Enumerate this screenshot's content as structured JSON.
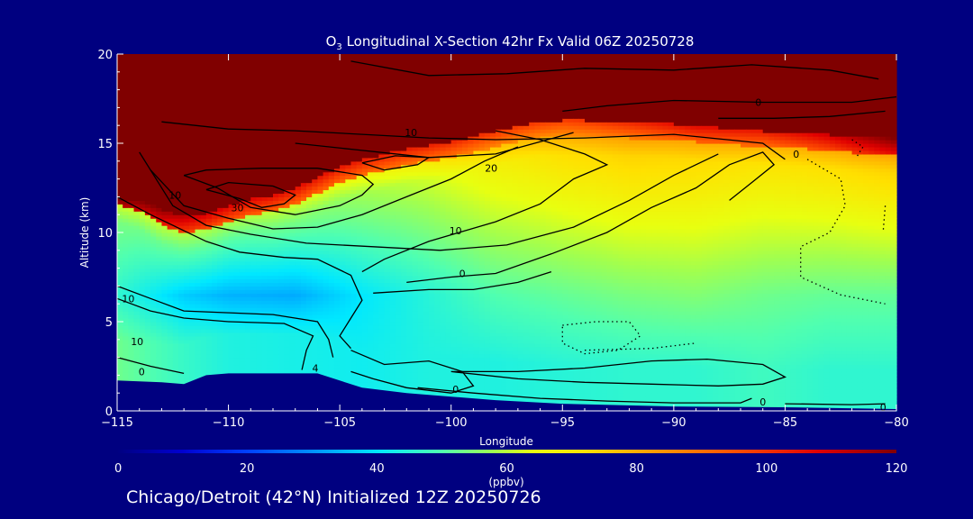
{
  "footer": "Chicago/Detroit (42°N) Initialized 12Z 20250726",
  "chart_data": {
    "type": "heatmap",
    "title_prefix": "O",
    "title_sub": "3",
    "title_rest": " Longitudinal X-Section 42hr  Fx Valid 06Z 20250728",
    "xlabel": "Longitude",
    "ylabel": "Altitude (km)",
    "xlim": [
      -115,
      -80
    ],
    "ylim": [
      0,
      20
    ],
    "x_ticks": [
      -115,
      -110,
      -105,
      -100,
      -95,
      -90,
      -85,
      -80
    ],
    "x_tick_labels": [
      "−115",
      "−110",
      "−105",
      "−100",
      "−95",
      "−90",
      "−85",
      "−80"
    ],
    "y_ticks": [
      0,
      5,
      10,
      15,
      20
    ],
    "y_tick_labels": [
      "0",
      "5",
      "10",
      "15",
      "20"
    ],
    "colorbar": {
      "range": [
        0,
        120
      ],
      "ticks": [
        0,
        20,
        40,
        60,
        80,
        100,
        120
      ],
      "tick_labels": [
        "0",
        "20",
        "40",
        "60",
        "80",
        "100",
        "120"
      ],
      "units": "(ppbv)"
    },
    "colormap": [
      [
        0,
        "#000080"
      ],
      [
        10,
        "#0000d0"
      ],
      [
        20,
        "#0040ff"
      ],
      [
        30,
        "#0090ff"
      ],
      [
        40,
        "#00e8ff"
      ],
      [
        50,
        "#50ffb0"
      ],
      [
        58,
        "#a0ff50"
      ],
      [
        64,
        "#e8ff10"
      ],
      [
        72,
        "#ffe000"
      ],
      [
        82,
        "#ffa000"
      ],
      [
        95,
        "#ff5000"
      ],
      [
        108,
        "#e00000"
      ],
      [
        120,
        "#800000"
      ]
    ],
    "terrain_altitude_km": {
      "lon": [
        -115,
        -113,
        -112,
        -111,
        -110,
        -108,
        -106,
        -104,
        -102,
        -100,
        -98,
        -95,
        -90,
        -85,
        -80
      ],
      "alt": [
        1.7,
        1.6,
        1.5,
        2.0,
        2.1,
        2.1,
        2.1,
        1.3,
        1.0,
        0.8,
        0.6,
        0.4,
        0.25,
        0.2,
        0.1
      ]
    },
    "tropopause_altitude_km": {
      "lon": [
        -115,
        -114,
        -113,
        -112,
        -111,
        -110,
        -109,
        -108,
        -107,
        -106,
        -105,
        -104,
        -103,
        -102,
        -101,
        -100,
        -99,
        -98,
        -97,
        -96,
        -95,
        -94,
        -92,
        -90,
        -88,
        -86,
        -84,
        -82,
        -80
      ],
      "alt": [
        11.6,
        11.2,
        10.4,
        10.0,
        10.2,
        10.6,
        11.0,
        11.2,
        11.6,
        12.2,
        12.8,
        13.2,
        13.5,
        13.8,
        14.0,
        14.2,
        14.5,
        14.8,
        15.1,
        15.3,
        15.4,
        15.4,
        15.3,
        15.2,
        15.0,
        14.8,
        14.7,
        14.5,
        14.4
      ]
    },
    "lower_strat_peak_ppbv": {
      "lon": [
        -115,
        -112,
        -110,
        -107,
        -104,
        -101,
        -98,
        -95,
        -92,
        -89,
        -86,
        -83,
        -80
      ],
      "value": [
        115,
        98,
        94,
        92,
        90,
        89,
        86,
        84,
        88,
        93,
        90,
        96,
        106
      ]
    },
    "upper_trop_ppbv": {
      "lon": [
        -115,
        -112,
        -110,
        -107,
        -104,
        -101,
        -98,
        -95,
        -92,
        -89,
        -86,
        -83,
        -80
      ],
      "value": [
        54,
        52,
        51,
        54,
        58,
        62,
        68,
        72,
        74,
        73,
        71,
        72,
        74
      ]
    },
    "mid_trop_ppbv": {
      "lon": [
        -115,
        -112,
        -110,
        -107,
        -104,
        -101,
        -98,
        -95,
        -92,
        -89,
        -86,
        -83,
        -80
      ],
      "value": [
        46,
        37,
        34,
        33,
        40,
        45,
        50,
        52,
        54,
        55,
        53,
        52,
        52
      ]
    },
    "boundary_layer_ppbv": {
      "lon": [
        -115,
        -112,
        -110,
        -107,
        -104,
        -101,
        -98,
        -95,
        -92,
        -89,
        -86,
        -83,
        -80
      ],
      "value": [
        53,
        47,
        44,
        43,
        42,
        44,
        44,
        45,
        46,
        46,
        48,
        46,
        46
      ]
    },
    "anomaly_contours": [
      {
        "dotted": false,
        "pts": [
          [
            -115,
            12.0
          ],
          [
            -113.5,
            11.0
          ],
          [
            -112.5,
            10.4
          ],
          [
            -111,
            9.5
          ],
          [
            -109.5,
            8.9
          ],
          [
            -107.5,
            8.6
          ],
          [
            -106,
            8.5
          ],
          [
            -104.5,
            7.6
          ],
          [
            -104,
            6.2
          ],
          [
            -104.5,
            5.2
          ],
          [
            -105,
            4.2
          ],
          [
            -104.5,
            3.5
          ]
        ]
      },
      {
        "dotted": false,
        "pts": [
          [
            -115,
            6.3
          ],
          [
            -113.5,
            5.6
          ],
          [
            -112,
            5.2
          ],
          [
            -110,
            5.0
          ],
          [
            -107.5,
            4.9
          ],
          [
            -106.2,
            4.2
          ],
          [
            -106.5,
            3.4
          ],
          [
            -106.7,
            2.3
          ]
        ]
      },
      {
        "dotted": false,
        "pts": [
          [
            -115,
            3.0
          ],
          [
            -113.5,
            2.5
          ],
          [
            -112,
            2.1
          ]
        ]
      },
      {
        "dotted": false,
        "pts": [
          [
            -115,
            7.0
          ],
          [
            -113.5,
            6.3
          ],
          [
            -112,
            5.6
          ],
          [
            -110,
            5.5
          ],
          [
            -108,
            5.4
          ],
          [
            -106,
            5.0
          ],
          [
            -105.5,
            4.0
          ],
          [
            -105.3,
            3.0
          ]
        ]
      },
      {
        "dotted": false,
        "pts": [
          [
            -112,
            13.2
          ],
          [
            -110.5,
            12.5
          ],
          [
            -109,
            11.4
          ],
          [
            -107,
            11.0
          ],
          [
            -105,
            11.5
          ],
          [
            -104,
            12.1
          ],
          [
            -103.5,
            12.7
          ],
          [
            -104,
            13.2
          ],
          [
            -106,
            13.6
          ],
          [
            -108.5,
            13.6
          ],
          [
            -111,
            13.5
          ],
          [
            -112,
            13.2
          ]
        ]
      },
      {
        "dotted": false,
        "pts": [
          [
            -111,
            12.4
          ],
          [
            -109.5,
            11.9
          ],
          [
            -108.5,
            11.4
          ],
          [
            -107.5,
            11.6
          ],
          [
            -107,
            12.1
          ],
          [
            -108,
            12.6
          ],
          [
            -110,
            12.8
          ],
          [
            -111,
            12.4
          ]
        ]
      },
      {
        "dotted": false,
        "pts": [
          [
            -113.5,
            13.5
          ],
          [
            -112,
            11.5
          ],
          [
            -110,
            10.8
          ],
          [
            -108,
            10.2
          ],
          [
            -106,
            10.3
          ],
          [
            -104,
            11.0
          ],
          [
            -102,
            12.0
          ],
          [
            -100,
            13.0
          ],
          [
            -98.5,
            14.0
          ],
          [
            -97,
            14.8
          ]
        ]
      },
      {
        "dotted": false,
        "pts": [
          [
            -114,
            14.5
          ],
          [
            -112.5,
            11.5
          ],
          [
            -111,
            10.4
          ],
          [
            -109,
            9.9
          ],
          [
            -106.5,
            9.4
          ],
          [
            -103.5,
            9.2
          ],
          [
            -100.5,
            9.0
          ],
          [
            -97.5,
            9.3
          ],
          [
            -94.5,
            10.3
          ],
          [
            -92,
            11.8
          ],
          [
            -90,
            13.2
          ],
          [
            -88,
            14.4
          ]
        ]
      },
      {
        "dotted": false,
        "pts": [
          [
            -102,
            7.2
          ],
          [
            -100,
            7.5
          ],
          [
            -98,
            7.7
          ],
          [
            -95.5,
            8.8
          ],
          [
            -93,
            10.0
          ],
          [
            -91,
            11.4
          ],
          [
            -89,
            12.5
          ],
          [
            -87.5,
            13.8
          ],
          [
            -86,
            14.5
          ],
          [
            -85.5,
            13.8
          ],
          [
            -86.5,
            12.8
          ],
          [
            -87.5,
            11.8
          ]
        ]
      },
      {
        "dotted": false,
        "pts": [
          [
            -104,
            7.8
          ],
          [
            -103,
            8.5
          ],
          [
            -101,
            9.5
          ],
          [
            -98,
            10.6
          ],
          [
            -96,
            11.6
          ],
          [
            -94.5,
            13.0
          ],
          [
            -93,
            13.8
          ],
          [
            -94,
            14.4
          ],
          [
            -96,
            15.2
          ],
          [
            -98,
            15.7
          ]
        ]
      },
      {
        "dotted": false,
        "pts": [
          [
            -103.5,
            6.6
          ],
          [
            -101,
            6.8
          ],
          [
            -99,
            6.8
          ],
          [
            -97,
            7.2
          ],
          [
            -95.5,
            7.8
          ]
        ]
      },
      {
        "dotted": false,
        "pts": [
          [
            -104.5,
            3.4
          ],
          [
            -103,
            2.6
          ],
          [
            -101,
            2.8
          ],
          [
            -99.5,
            2.2
          ],
          [
            -99,
            1.4
          ],
          [
            -100,
            1.0
          ],
          [
            -102,
            1.3
          ],
          [
            -103.5,
            1.8
          ],
          [
            -104.5,
            2.2
          ]
        ]
      },
      {
        "dotted": false,
        "pts": [
          [
            -107,
            15.0
          ],
          [
            -104,
            14.6
          ],
          [
            -101,
            14.2
          ],
          [
            -98,
            14.4
          ],
          [
            -94.5,
            15.6
          ]
        ]
      },
      {
        "dotted": false,
        "pts": [
          [
            -113,
            16.2
          ],
          [
            -110,
            15.8
          ],
          [
            -107,
            15.7
          ],
          [
            -104,
            15.5
          ],
          [
            -101,
            15.3
          ],
          [
            -98,
            15.2
          ],
          [
            -94,
            15.3
          ],
          [
            -90,
            15.5
          ],
          [
            -86,
            15.0
          ],
          [
            -85,
            14.1
          ]
        ]
      },
      {
        "dotted": false,
        "pts": [
          [
            -104,
            13.9
          ],
          [
            -102.5,
            14.3
          ],
          [
            -101,
            14.2
          ],
          [
            -101.5,
            13.8
          ],
          [
            -103,
            13.5
          ],
          [
            -104,
            13.9
          ]
        ]
      },
      {
        "dotted": false,
        "pts": [
          [
            -95,
            16.8
          ],
          [
            -93,
            17.1
          ],
          [
            -90,
            17.4
          ],
          [
            -86,
            17.3
          ],
          [
            -82,
            17.3
          ],
          [
            -80,
            17.6
          ]
        ]
      },
      {
        "dotted": false,
        "pts": [
          [
            -104.5,
            19.6
          ],
          [
            -101,
            18.8
          ],
          [
            -97.5,
            18.9
          ],
          [
            -94,
            19.2
          ],
          [
            -90,
            19.1
          ],
          [
            -86.5,
            19.4
          ],
          [
            -83,
            19.1
          ],
          [
            -80.8,
            18.6
          ]
        ]
      },
      {
        "dotted": false,
        "pts": [
          [
            -88,
            16.4
          ],
          [
            -85.5,
            16.4
          ],
          [
            -83,
            16.5
          ],
          [
            -80.5,
            16.8
          ]
        ]
      },
      {
        "dotted": false,
        "pts": [
          [
            -100,
            2.2
          ],
          [
            -97,
            1.8
          ],
          [
            -94,
            1.6
          ],
          [
            -91,
            1.5
          ],
          [
            -88,
            1.4
          ],
          [
            -86,
            1.5
          ],
          [
            -85,
            1.9
          ],
          [
            -86,
            2.6
          ],
          [
            -88.5,
            2.9
          ],
          [
            -91,
            2.8
          ],
          [
            -94,
            2.4
          ],
          [
            -97,
            2.2
          ],
          [
            -100,
            2.2
          ]
        ]
      },
      {
        "dotted": false,
        "pts": [
          [
            -101.5,
            1.3
          ],
          [
            -99,
            1.0
          ],
          [
            -96,
            0.7
          ],
          [
            -93,
            0.55
          ],
          [
            -90,
            0.45
          ],
          [
            -87,
            0.45
          ],
          [
            -86.5,
            0.7
          ]
        ]
      },
      {
        "dotted": false,
        "pts": [
          [
            -85,
            0.4
          ],
          [
            -82,
            0.35
          ],
          [
            -80.5,
            0.4
          ]
        ]
      },
      {
        "dotted": true,
        "pts": [
          [
            -84,
            14.1
          ],
          [
            -82.5,
            13.0
          ],
          [
            -82.3,
            11.5
          ],
          [
            -83,
            10.0
          ],
          [
            -84.3,
            9.2
          ],
          [
            -84.3,
            7.5
          ],
          [
            -82.5,
            6.5
          ],
          [
            -80.5,
            6.0
          ]
        ]
      },
      {
        "dotted": true,
        "pts": [
          [
            -82,
            15.2
          ],
          [
            -81.5,
            14.8
          ],
          [
            -81.8,
            14.2
          ]
        ]
      },
      {
        "dotted": true,
        "pts": [
          [
            -80.5,
            11.5
          ],
          [
            -80.6,
            10.0
          ]
        ]
      },
      {
        "dotted": true,
        "pts": [
          [
            -95,
            4.8
          ],
          [
            -93.5,
            5.0
          ],
          [
            -92,
            5.0
          ],
          [
            -91.5,
            4.2
          ],
          [
            -92.5,
            3.4
          ],
          [
            -94,
            3.2
          ],
          [
            -95,
            3.8
          ],
          [
            -95,
            4.8
          ]
        ]
      },
      {
        "dotted": true,
        "pts": [
          [
            -94,
            3.4
          ],
          [
            -91,
            3.5
          ],
          [
            -89,
            3.8
          ]
        ]
      }
    ],
    "contour_labels": [
      {
        "text": "0",
        "lon": -86.2,
        "alt": 17.3
      },
      {
        "text": "0",
        "lon": -84.5,
        "alt": 14.4
      },
      {
        "text": "10",
        "lon": -101.8,
        "alt": 15.6
      },
      {
        "text": "20",
        "lon": -98.2,
        "alt": 13.6
      },
      {
        "text": "10",
        "lon": -112.4,
        "alt": 12.1
      },
      {
        "text": "30",
        "lon": -109.6,
        "alt": 11.4
      },
      {
        "text": "10",
        "lon": -99.8,
        "alt": 10.1
      },
      {
        "text": "0",
        "lon": -99.5,
        "alt": 7.7
      },
      {
        "text": "10",
        "lon": -114.5,
        "alt": 6.3
      },
      {
        "text": "10",
        "lon": -114.1,
        "alt": 3.9
      },
      {
        "text": "0",
        "lon": -113.9,
        "alt": 2.2
      },
      {
        "text": "4",
        "lon": -106.1,
        "alt": 2.4
      },
      {
        "text": "0",
        "lon": -99.8,
        "alt": 1.2
      },
      {
        "text": "0",
        "lon": -86.0,
        "alt": 0.5
      },
      {
        "text": "0",
        "lon": -80.6,
        "alt": 0.2
      }
    ]
  }
}
